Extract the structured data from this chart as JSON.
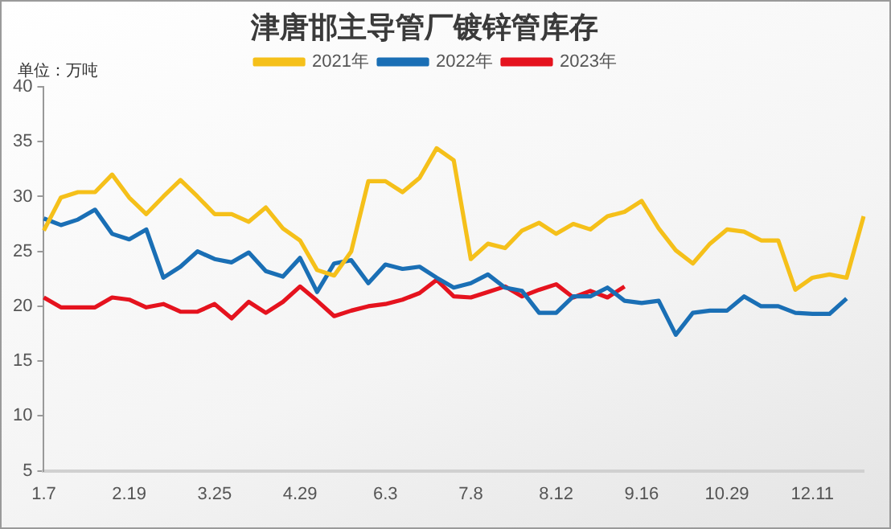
{
  "chart_data": {
    "type": "line",
    "title": "津唐邯主导管厂镀锌管库存",
    "annotations": [
      "单位：万吨"
    ],
    "categories": [
      "1.7",
      null,
      null,
      null,
      null,
      "2.19",
      null,
      null,
      null,
      null,
      "3.25",
      null,
      null,
      null,
      null,
      "4.29",
      null,
      null,
      null,
      null,
      "6.3",
      null,
      null,
      null,
      null,
      "7.8",
      null,
      null,
      null,
      null,
      "8.12",
      null,
      null,
      null,
      null,
      "9.16",
      null,
      null,
      null,
      null,
      "10.29",
      null,
      null,
      null,
      null,
      "12.11",
      null,
      null,
      null
    ],
    "series": [
      {
        "name": "2021年",
        "color": "#f5c01a",
        "values": [
          26.9,
          29.9,
          30.4,
          30.4,
          32.0,
          29.9,
          28.4,
          30.0,
          31.5,
          30.0,
          28.4,
          28.4,
          27.7,
          29.0,
          27.1,
          26.0,
          23.3,
          22.8,
          25.0,
          31.4,
          31.4,
          30.4,
          31.7,
          34.4,
          33.3,
          24.3,
          25.7,
          25.3,
          26.9,
          27.6,
          26.6,
          27.5,
          27.0,
          28.2,
          28.6,
          29.6,
          27.1,
          25.1,
          23.9,
          25.7,
          27.0,
          26.8,
          26.0,
          26.0,
          21.5,
          22.6,
          22.9,
          22.6,
          28.2
        ]
      },
      {
        "name": "2022年",
        "color": "#1a6fb5",
        "values": [
          28.0,
          27.4,
          27.9,
          28.8,
          26.6,
          26.1,
          27.0,
          22.6,
          23.6,
          25.0,
          24.3,
          24.0,
          24.9,
          23.2,
          22.7,
          24.4,
          21.3,
          23.9,
          24.2,
          22.1,
          23.8,
          23.4,
          23.6,
          22.6,
          21.7,
          22.1,
          22.9,
          21.7,
          21.4,
          19.4,
          19.4,
          20.9,
          20.9,
          21.7,
          20.5,
          20.3,
          20.5,
          17.4,
          19.4,
          19.6,
          19.6,
          20.9,
          20.0,
          20.0,
          19.4,
          19.3,
          19.3,
          20.7,
          null
        ]
      },
      {
        "name": "2023年",
        "color": "#e5131e",
        "values": [
          20.8,
          19.9,
          19.9,
          19.9,
          20.8,
          20.6,
          19.9,
          20.2,
          19.5,
          19.5,
          20.2,
          18.9,
          20.4,
          19.4,
          20.4,
          21.8,
          20.5,
          19.1,
          19.6,
          20.0,
          20.2,
          20.6,
          21.2,
          22.4,
          20.9,
          20.8,
          21.3,
          21.8,
          20.9,
          21.5,
          22.0,
          20.8,
          21.4,
          20.8,
          21.8,
          null,
          null,
          null,
          null,
          null,
          null,
          null,
          null,
          null,
          null,
          null,
          null,
          null,
          null
        ]
      }
    ],
    "ylim": [
      5,
      40
    ],
    "yticks": [
      5,
      10,
      15,
      20,
      25,
      30,
      35,
      40
    ],
    "grid": false,
    "legend": "top",
    "marker": "none",
    "line_style": "solid"
  }
}
